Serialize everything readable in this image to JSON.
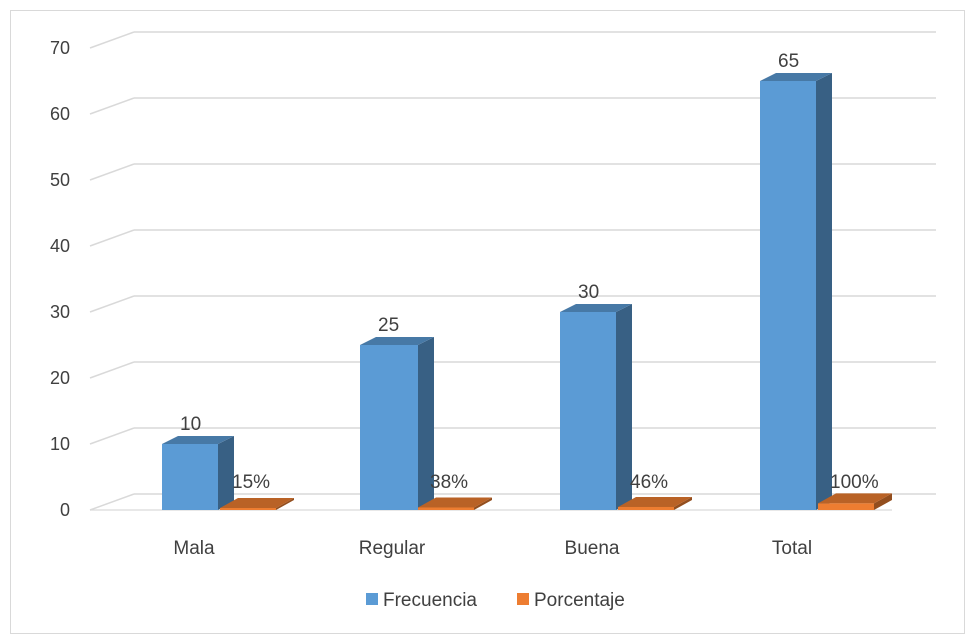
{
  "chart_data": {
    "type": "bar",
    "categories": [
      "Mala",
      "Regular",
      "Buena",
      "Total"
    ],
    "series": [
      {
        "name": "Frecuencia",
        "values": [
          10,
          25,
          30,
          65
        ],
        "labels": [
          "10",
          "25",
          "30",
          "65"
        ],
        "color": "#5b9bd5"
      },
      {
        "name": "Porcentaje",
        "values": [
          0.15,
          0.38,
          0.46,
          1.0
        ],
        "labels": [
          "15%",
          "38%",
          "46%",
          "100%"
        ],
        "color": "#ed7d31"
      }
    ],
    "ylim": [
      0,
      70
    ],
    "yticks": [
      "0",
      "10",
      "20",
      "30",
      "40",
      "50",
      "60",
      "70"
    ],
    "grid": true,
    "legend_position": "bottom",
    "style": "3d-column"
  }
}
